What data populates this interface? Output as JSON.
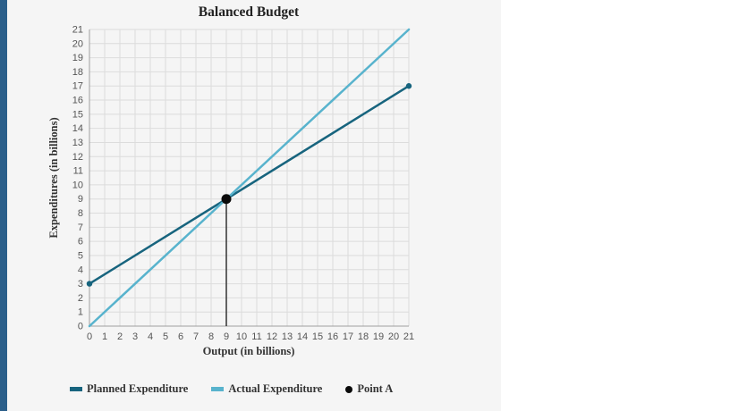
{
  "theme": {
    "accent_bar_color": "#2b5f8a",
    "panel_bg": "#f5f5f5",
    "page_bg": "#ffffff"
  },
  "chart_data": {
    "type": "line",
    "title": "Balanced Budget",
    "xlabel": "Output (in billions)",
    "ylabel": "Expenditures (in billions)",
    "xlim": [
      0,
      21
    ],
    "ylim": [
      0,
      21
    ],
    "xticks": [
      0,
      1,
      2,
      3,
      4,
      5,
      6,
      7,
      8,
      9,
      10,
      11,
      12,
      13,
      14,
      15,
      16,
      17,
      18,
      19,
      20,
      21
    ],
    "yticks": [
      0,
      1,
      2,
      3,
      4,
      5,
      6,
      7,
      8,
      9,
      10,
      11,
      12,
      13,
      14,
      15,
      16,
      17,
      18,
      19,
      20,
      21
    ],
    "grid": true,
    "grid_color": "#dcdcdc",
    "axis_color": "#9e9e9e",
    "tick_color": "#555555",
    "series": [
      {
        "name": "Planned Expenditure",
        "color": "#17647e",
        "points": [
          [
            0,
            3
          ],
          [
            21,
            17
          ]
        ],
        "endpoint_dots": true,
        "width": 2.5
      },
      {
        "name": "Actual Expenditure",
        "color": "#58b3cd",
        "points": [
          [
            0,
            0
          ],
          [
            21,
            21
          ]
        ],
        "endpoint_dots": false,
        "width": 2.5
      }
    ],
    "annotations": {
      "vline": {
        "x": 9,
        "y_from": 0,
        "y_to": 9,
        "color": "#333333",
        "width": 1.5
      },
      "point": {
        "label": "Point A",
        "x": 9,
        "y": 9,
        "color": "#0a0a0a",
        "radius": 5.5
      }
    },
    "legend": [
      {
        "label": "Planned Expenditure",
        "swatch": "line",
        "color": "#17647e"
      },
      {
        "label": "Actual Expenditure",
        "swatch": "line",
        "color": "#58b3cd"
      },
      {
        "label": "Point A",
        "swatch": "dot",
        "color": "#0a0a0a"
      }
    ],
    "legend_position": "bottom"
  }
}
